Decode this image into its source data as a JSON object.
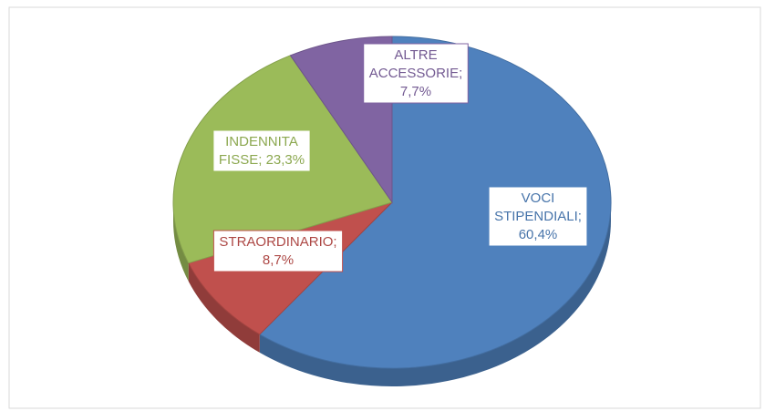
{
  "chart_data": {
    "type": "pie",
    "value_labels": [
      "VOCI\nSTIPENDIALI;\n60,4%",
      "STRAORDINARIO;\n8,7%",
      "INDENNITA\nFISSE; 23,3%",
      "ALTRE\nACCESSORIE;\n7,7%"
    ],
    "values": [
      60.4,
      8.7,
      23.3,
      7.7
    ],
    "colors": [
      "#4f81bd",
      "#c0504d",
      "#9bbb59",
      "#8064a2"
    ]
  }
}
